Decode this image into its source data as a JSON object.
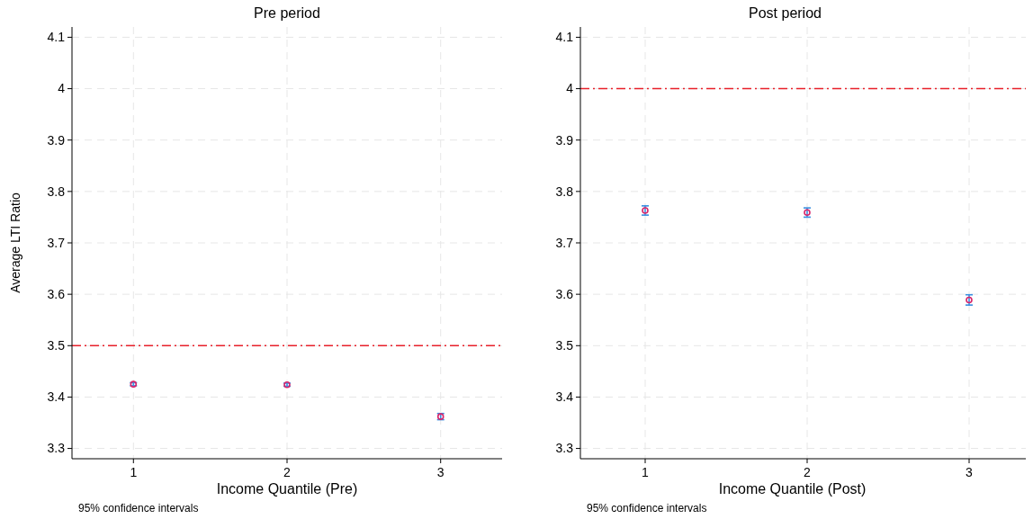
{
  "chart_data": [
    {
      "type": "scatter",
      "title": "Pre period",
      "xlabel": "Income Quantile (Pre)",
      "ylabel": "Average LTI Ratio",
      "x": [
        1,
        2,
        3
      ],
      "series": [
        {
          "color": "#d6256a",
          "values": [
            3.425,
            3.424,
            3.362
          ],
          "errors": [
            0.003,
            0.003,
            0.006
          ]
        }
      ],
      "xlim": [
        0.6,
        3.4
      ],
      "xticks": [
        1,
        2,
        3
      ],
      "ylim": [
        3.28,
        4.12
      ],
      "yticks": [
        3.3,
        3.4,
        3.5,
        3.6,
        3.7,
        3.8,
        3.9,
        4,
        4.1
      ],
      "ref_lines": [
        {
          "axis": "y",
          "value": 3.5,
          "color": "#e8202a",
          "line_style": "dashdot"
        }
      ],
      "grid": true,
      "marker": "circle",
      "annotations": [
        "95% confidence intervals"
      ]
    },
    {
      "type": "scatter",
      "title": "Post period",
      "xlabel": "Income Quantile (Post)",
      "x": [
        1,
        2,
        3
      ],
      "series": [
        {
          "color": "#d6256a",
          "values": [
            3.763,
            3.759,
            3.589
          ],
          "errors": [
            0.009,
            0.009,
            0.01
          ]
        }
      ],
      "xlim": [
        0.6,
        3.35
      ],
      "xticks": [
        1,
        2,
        3
      ],
      "ylim": [
        3.28,
        4.12
      ],
      "yticks": [
        3.3,
        3.4,
        3.5,
        3.6,
        3.7,
        3.8,
        3.9,
        4,
        4.1
      ],
      "ref_lines": [
        {
          "axis": "y",
          "value": 4,
          "color": "#e8202a",
          "line_style": "dashdot"
        }
      ],
      "grid": true,
      "marker": "circle",
      "annotations": [
        "95% confidence intervals"
      ]
    }
  ]
}
